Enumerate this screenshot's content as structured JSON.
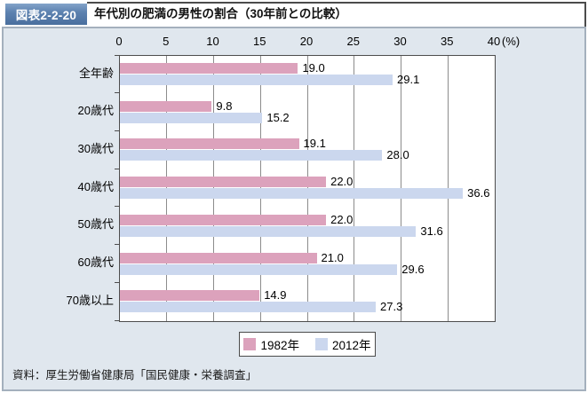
{
  "header": {
    "label": "図表2-2-20",
    "title": "年代別の肥満の男性の割合（30年前との比較）"
  },
  "chart_data": {
    "type": "bar",
    "orientation": "horizontal",
    "title": "年代別の肥満の男性の割合（30年前との比較）",
    "categories": [
      "全年齢",
      "20歳代",
      "30歳代",
      "40歳代",
      "50歳代",
      "60歳代",
      "70歳以上"
    ],
    "series": [
      {
        "name": "1982年",
        "color": "#dca2bc",
        "values": [
          19.0,
          9.8,
          19.1,
          22.0,
          22.0,
          21.0,
          14.9
        ]
      },
      {
        "name": "2012年",
        "color": "#cbd7ee",
        "values": [
          29.1,
          15.2,
          28.0,
          36.6,
          31.6,
          29.6,
          27.3
        ]
      }
    ],
    "x_ticks": [
      0,
      5,
      10,
      15,
      20,
      25,
      30,
      35,
      40
    ],
    "x_unit_label": "(%)",
    "xlim": [
      0,
      40
    ],
    "grid": true,
    "legend_position": "bottom"
  },
  "footer": {
    "source": "資料：厚生労働省健康局「国民健康・栄養調査」"
  },
  "colors": {
    "series1": "#dca2bc",
    "series2": "#cbd7ee",
    "panel_bg": "#e0e7ee",
    "label_box": "#54799f"
  }
}
